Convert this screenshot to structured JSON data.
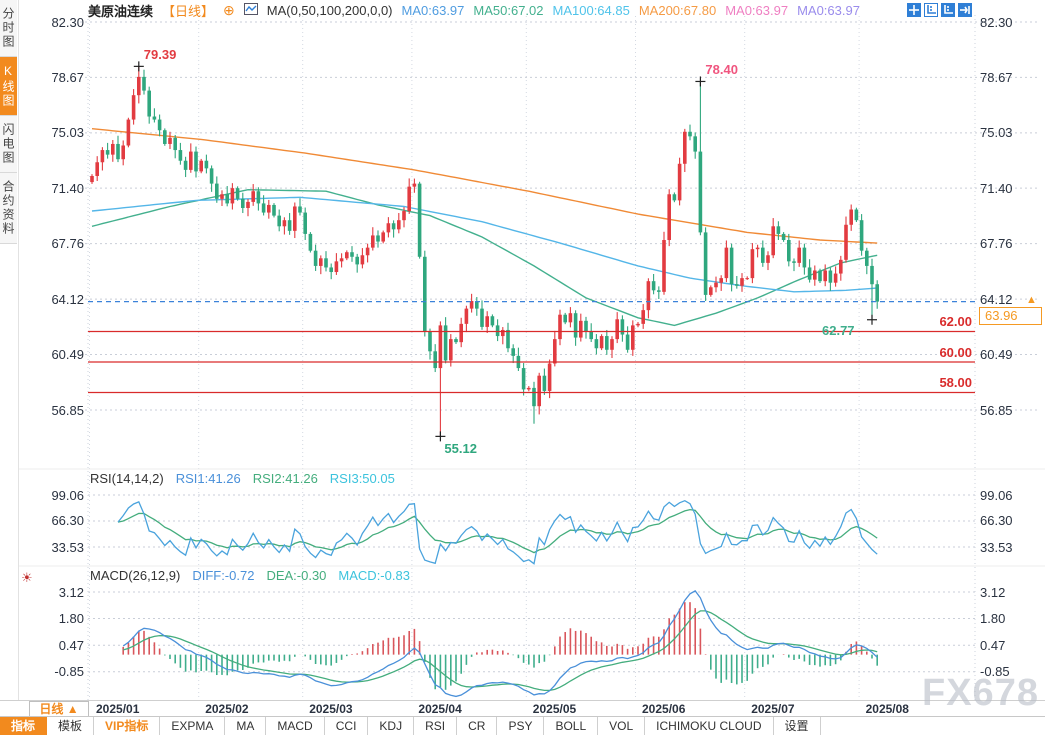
{
  "app": {
    "watermark": "FX678"
  },
  "sidebar": {
    "tabs": [
      {
        "label": "分时图",
        "active": false
      },
      {
        "label": "K线图",
        "active": true
      },
      {
        "label": "闪电图",
        "active": false
      },
      {
        "label": "合约资料",
        "active": false
      }
    ]
  },
  "header": {
    "symbol": "美原油连续",
    "period_tag": "【日线】",
    "add_icon": "⊕",
    "ma_settings": "MA(0,50,100,200,0,0)",
    "ma_values": [
      {
        "label": "MA0:63.97",
        "color": "#4f9ce0"
      },
      {
        "label": "MA50:67.02",
        "color": "#43b08e"
      },
      {
        "label": "MA100:64.85",
        "color": "#4fc3ea"
      },
      {
        "label": "MA200:67.80",
        "color": "#f59b45"
      },
      {
        "label": "MA0:63.97",
        "color": "#ef7fc2"
      },
      {
        "label": "MA0:63.97",
        "color": "#9a8cec"
      }
    ],
    "window_icons": [
      {
        "name": "crosshair-icon",
        "style": "filled"
      },
      {
        "name": "price-scale-icon",
        "style": "outline"
      },
      {
        "name": "price-scale-active-icon",
        "style": "filled"
      },
      {
        "name": "pan-to-latest-icon",
        "style": "filled"
      }
    ]
  },
  "rsi": {
    "title": "RSI(14,14,2)",
    "values": [
      {
        "label": "RSI1:41.26",
        "color": "#4a90d9"
      },
      {
        "label": "RSI2:41.26",
        "color": "#44ad7d"
      },
      {
        "label": "RSI3:50.05",
        "color": "#3cc3dd"
      }
    ],
    "axis": [
      "99.06",
      "66.30",
      "33.53"
    ]
  },
  "macd": {
    "title": "MACD(26,12,9)",
    "values": [
      {
        "label": "DIFF:-0.72",
        "color": "#4a90d9"
      },
      {
        "label": "DEA:-0.30",
        "color": "#44ad7d"
      },
      {
        "label": "MACD:-0.83",
        "color": "#3cc3dd"
      }
    ],
    "axis": [
      "3.12",
      "1.80",
      "0.47",
      "-0.85"
    ]
  },
  "timeline": {
    "period_label": "日线",
    "period_arrow": "▲"
  },
  "toolbar": {
    "items": [
      {
        "label": "指标",
        "style": "active"
      },
      {
        "label": "模板",
        "style": ""
      },
      {
        "label": "VIP指标",
        "style": "vip"
      },
      {
        "label": "EXPMA",
        "style": ""
      },
      {
        "label": "MA",
        "style": ""
      },
      {
        "label": "MACD",
        "style": ""
      },
      {
        "label": "CCI",
        "style": ""
      },
      {
        "label": "KDJ",
        "style": ""
      },
      {
        "label": "RSI",
        "style": ""
      },
      {
        "label": "CR",
        "style": ""
      },
      {
        "label": "PSY",
        "style": ""
      },
      {
        "label": "BOLL",
        "style": ""
      },
      {
        "label": "VOL",
        "style": ""
      },
      {
        "label": "ICHIMOKU CLOUD",
        "style": ""
      },
      {
        "label": "设置",
        "style": ""
      }
    ]
  },
  "chart_data": {
    "type": "candlestick",
    "symbol": "美原油连续",
    "interval": "日线",
    "y_axis_labels": [
      "82.30",
      "78.67",
      "75.03",
      "71.40",
      "67.76",
      "64.12",
      "60.49",
      "56.85"
    ],
    "ylim": [
      56.85,
      82.3
    ],
    "months": [
      {
        "label": "2025/01",
        "day": 0
      },
      {
        "label": "2025/02",
        "day": 21
      },
      {
        "label": "2025/03",
        "day": 41
      },
      {
        "label": "2025/04",
        "day": 62
      },
      {
        "label": "2025/05",
        "day": 84
      },
      {
        "label": "2025/06",
        "day": 105
      },
      {
        "label": "2025/07",
        "day": 126
      },
      {
        "label": "2025/08",
        "day": 148
      }
    ],
    "closes": [
      72.2,
      73.1,
      73.9,
      73.6,
      74.3,
      73.3,
      74.2,
      75.9,
      77.5,
      78.7,
      77.8,
      76.1,
      75.9,
      75.2,
      74.3,
      74.7,
      73.9,
      73.2,
      72.6,
      73.8,
      72.5,
      73.2,
      72.7,
      71.7,
      70.7,
      71.0,
      70.4,
      71.4,
      70.7,
      70.1,
      70.5,
      71.2,
      70.4,
      69.8,
      70.3,
      69.6,
      68.9,
      69.3,
      68.6,
      70.2,
      69.8,
      68.4,
      67.3,
      66.3,
      66.8,
      66.2,
      65.9,
      66.6,
      66.8,
      67.2,
      66.9,
      66.4,
      67.0,
      67.5,
      68.3,
      67.9,
      68.5,
      69.1,
      68.7,
      69.3,
      69.9,
      71.5,
      71.7,
      66.9,
      62.0,
      60.7,
      59.6,
      62.4,
      60.1,
      61.5,
      61.3,
      62.5,
      63.5,
      64.0,
      63.5,
      62.3,
      63.0,
      62.4,
      61.7,
      62.1,
      60.9,
      60.4,
      59.6,
      58.2,
      58.3,
      57.1,
      59.1,
      58.1,
      59.9,
      61.5,
      63.1,
      62.6,
      63.2,
      61.6,
      62.7,
      62.0,
      61.5,
      60.9,
      61.7,
      60.8,
      61.5,
      62.8,
      61.8,
      60.8,
      62.4,
      62.5,
      63.4,
      65.3,
      64.7,
      64.6,
      68.0,
      71.0,
      70.6,
      73.0,
      75.1,
      74.8,
      73.8,
      68.5,
      64.4,
      64.9,
      65.2,
      65.5,
      67.5,
      65.1,
      65.0,
      65.5,
      65.5,
      67.4,
      67.5,
      66.5,
      67.0,
      68.9,
      68.4,
      68.0,
      66.6,
      66.5,
      67.5,
      66.2,
      65.4,
      66.0,
      65.3,
      66.0,
      65.2,
      65.8,
      66.7,
      69.0,
      70.0,
      69.3,
      67.3,
      66.3,
      65.1,
      63.96
    ],
    "wick_overrides": {
      "9": {
        "high": 79.39
      },
      "67": {
        "low": 55.12
      },
      "85": {
        "low": 55.95
      },
      "117": {
        "high": 78.4
      },
      "150": {
        "low": 62.77
      }
    },
    "ma_lines": [
      {
        "name": "MA50",
        "color": "#43b08e",
        "anchors": [
          [
            0,
            68.9
          ],
          [
            15,
            70.2
          ],
          [
            30,
            71.3
          ],
          [
            45,
            71.2
          ],
          [
            55,
            70.3
          ],
          [
            65,
            69.6
          ],
          [
            75,
            68.2
          ],
          [
            85,
            66.3
          ],
          [
            95,
            64.2
          ],
          [
            105,
            62.9
          ],
          [
            112,
            62.4
          ],
          [
            120,
            63.2
          ],
          [
            128,
            64.2
          ],
          [
            136,
            65.4
          ],
          [
            144,
            66.5
          ],
          [
            151,
            67.0
          ]
        ]
      },
      {
        "name": "MA100",
        "color": "#54b6e8",
        "anchors": [
          [
            0,
            69.9
          ],
          [
            20,
            70.6
          ],
          [
            40,
            70.8
          ],
          [
            60,
            70.2
          ],
          [
            75,
            69.2
          ],
          [
            90,
            67.8
          ],
          [
            105,
            66.3
          ],
          [
            115,
            65.5
          ],
          [
            125,
            65.0
          ],
          [
            135,
            64.6
          ],
          [
            145,
            64.7
          ],
          [
            151,
            64.85
          ]
        ]
      },
      {
        "name": "MA200",
        "color": "#f08a36",
        "anchors": [
          [
            0,
            75.3
          ],
          [
            21,
            74.6
          ],
          [
            41,
            73.7
          ],
          [
            62,
            72.6
          ],
          [
            84,
            71.2
          ],
          [
            105,
            69.7
          ],
          [
            126,
            68.5
          ],
          [
            140,
            68.0
          ],
          [
            151,
            67.8
          ]
        ]
      }
    ],
    "support_levels": [
      {
        "value": 62,
        "label": "62.00"
      },
      {
        "value": 60,
        "label": "60.00"
      },
      {
        "value": 58,
        "label": "58.00"
      }
    ],
    "support_color": "#d92b2b",
    "last_price": 63.96,
    "last_price_label": "63.96",
    "price_line_color": "#3b82d9",
    "candle_up_color": "#e23b41",
    "candle_down_color": "#2fa77e",
    "annotations": [
      {
        "text": "79.39",
        "day": 9,
        "price": 79.39,
        "color": "#e23b41",
        "placement": "above"
      },
      {
        "text": "78.40",
        "day": 117,
        "price": 78.4,
        "color": "#f0557f",
        "placement": "above"
      },
      {
        "text": "55.12",
        "day": 67,
        "price": 55.12,
        "color": "#2fa77e",
        "placement": "below"
      },
      {
        "text": "62.77",
        "day": 150,
        "price": 62.77,
        "color": "#3fae8c",
        "placement": "below-left"
      }
    ]
  }
}
